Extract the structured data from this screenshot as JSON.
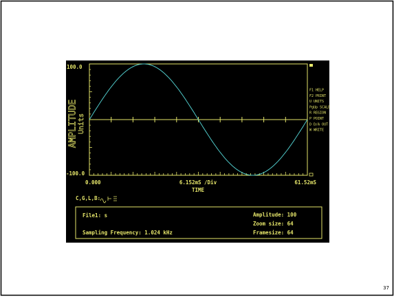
{
  "screen": {
    "y_axis": {
      "top": "100.0",
      "bottom": "-100.0",
      "label": "AMPLITUDE",
      "unit": "Units"
    },
    "x_axis": {
      "start": "0.000",
      "division": "6.152mS /Div",
      "end": "61.52mS",
      "label": "TIME"
    },
    "menu": [
      "F1 HELP",
      "F2 PRINT",
      "U UNITS",
      "PgUp SCALE",
      "R REGION",
      "P POINT",
      "D D/A OUT",
      "W WRITE"
    ],
    "cursor_keys": "C,G,L,B:"
  },
  "info": {
    "file": "File1: s",
    "sampling": "Sampling Frequency: 1.024 kHz",
    "amplitude": "Amplitude: 100",
    "zoom": "Zoom size: 64",
    "framesize": "Framesize: 64"
  },
  "page_number": "37"
}
